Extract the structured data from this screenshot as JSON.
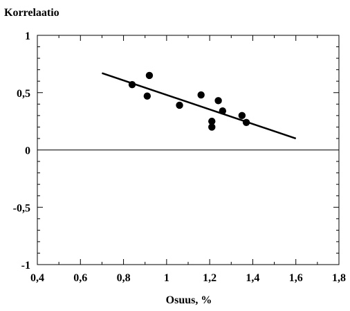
{
  "chart_data": {
    "type": "scatter",
    "title": "",
    "xlabel": "Osuus, %",
    "ylabel": "Korrelaatio",
    "xlim": [
      0.4,
      1.8
    ],
    "ylim": [
      -1,
      1
    ],
    "x_ticks": [
      0.4,
      0.6,
      0.8,
      1.0,
      1.2,
      1.4,
      1.6,
      1.8
    ],
    "x_tick_labels": [
      "0,4",
      "0,6",
      "0,8",
      "1",
      "1,2",
      "1,4",
      "1,6",
      "1,8"
    ],
    "y_ticks": [
      -1,
      -0.5,
      0,
      0.5,
      1
    ],
    "y_tick_labels": [
      "-1",
      "-0,5",
      "0",
      "0,5",
      "1"
    ],
    "grid": false,
    "reference_line_y": 0,
    "series": [
      {
        "type": "scatter",
        "points": [
          {
            "x": 0.84,
            "y": 0.57
          },
          {
            "x": 0.91,
            "y": 0.47
          },
          {
            "x": 0.92,
            "y": 0.65
          },
          {
            "x": 1.06,
            "y": 0.39
          },
          {
            "x": 1.16,
            "y": 0.48
          },
          {
            "x": 1.21,
            "y": 0.25
          },
          {
            "x": 1.21,
            "y": 0.2
          },
          {
            "x": 1.24,
            "y": 0.43
          },
          {
            "x": 1.26,
            "y": 0.34
          },
          {
            "x": 1.35,
            "y": 0.3
          },
          {
            "x": 1.37,
            "y": 0.24
          }
        ]
      },
      {
        "type": "line",
        "points": [
          {
            "x": 0.7,
            "y": 0.67
          },
          {
            "x": 1.6,
            "y": 0.1
          }
        ]
      }
    ]
  }
}
